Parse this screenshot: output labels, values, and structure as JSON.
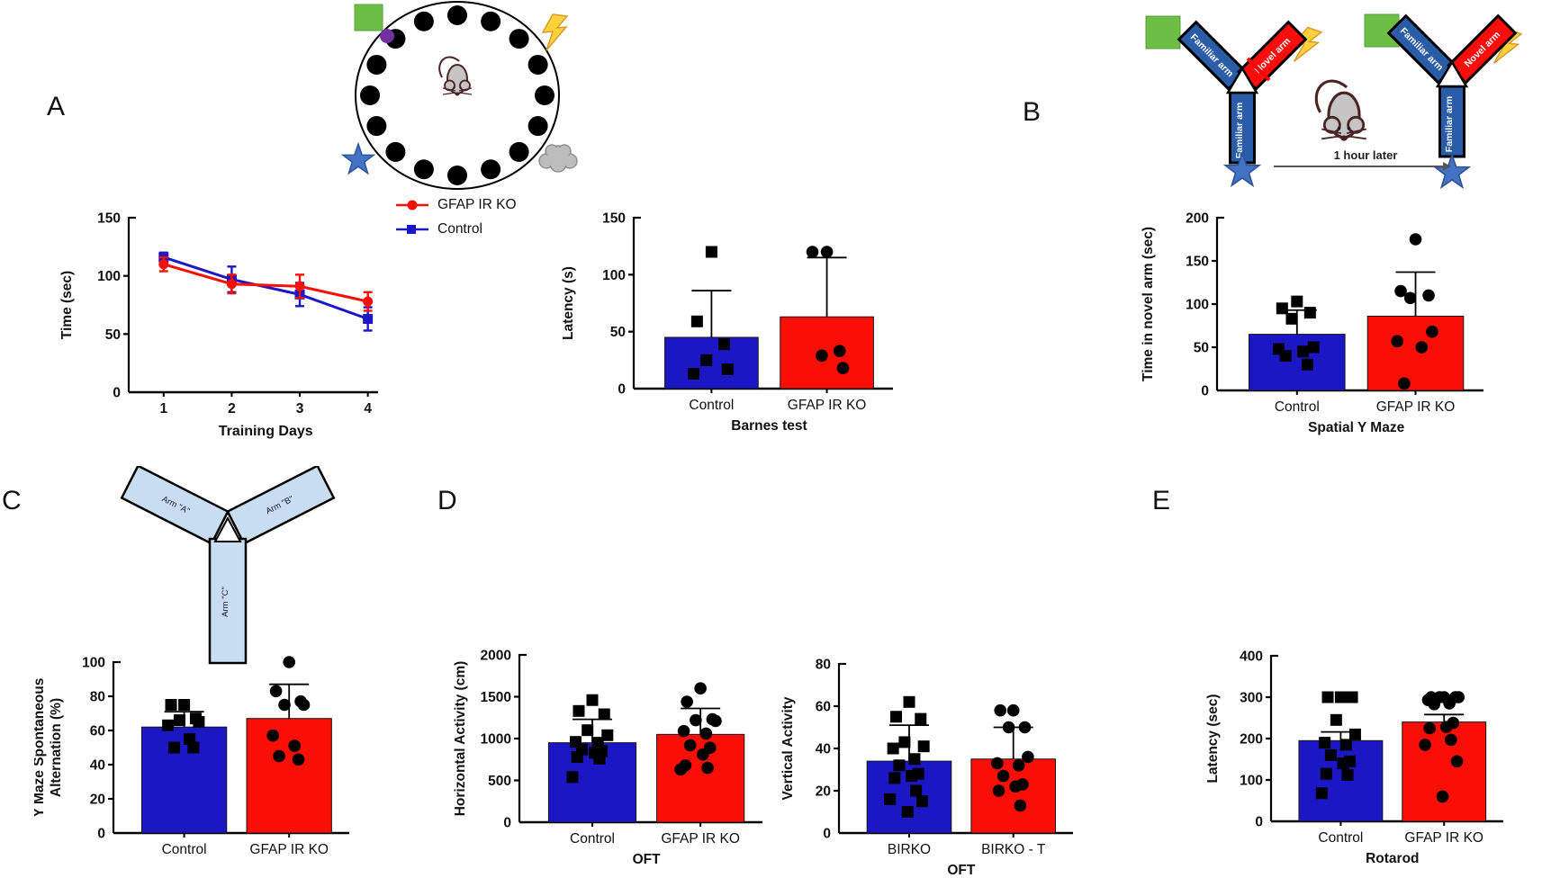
{
  "colors": {
    "control_blue": "#1C17C4",
    "ko_red": "#F90F06",
    "maze_arm_blue": "#2B5CA8",
    "maze_arm_red": "#FF0D0D",
    "maze_light_blue": "#C9DDF1",
    "cue_green": "#6CBE45",
    "cue_purple": "#7030A0",
    "cue_yellow": "#FFD23C",
    "cue_star_blue": "#4472C4",
    "cue_cloud_gray": "#BDBDBD"
  },
  "panels": {
    "a": "A",
    "b": "B",
    "c": "C",
    "d": "D",
    "e": "E"
  },
  "legend": {
    "items": [
      {
        "label": "GFAP IR KO",
        "marker": "circle",
        "color": "#F90F06"
      },
      {
        "label": "Control",
        "marker": "square",
        "color": "#1C17C4"
      }
    ]
  },
  "diagrams": {
    "barnes_maze": {
      "holes": 16,
      "cues": [
        "green-square",
        "purple-circle",
        "lightning-bolt",
        "blue-star",
        "gray-cloud"
      ],
      "center": "mouse"
    },
    "spatial_y_maze": {
      "familiar_arm_label": "Familiar arm",
      "novel_arm_label": "Novel arm",
      "interval_label": "1 hour later"
    },
    "y_maze": {
      "arm_a_label": "Arm \"A\"",
      "arm_b_label": "Arm \"B\"",
      "arm_c_label": "Arm \"C\""
    }
  },
  "chart_data": [
    {
      "id": "training",
      "type": "line",
      "title": "",
      "xlabel": "Training Days",
      "ylabel": "Time (sec)",
      "ylim": [
        0,
        150
      ],
      "yticks": [
        0,
        50,
        100,
        150
      ],
      "x": [
        1,
        2,
        3,
        4
      ],
      "series": [
        {
          "name": "GFAP IR KO",
          "color": "#F90F06",
          "marker": "circle",
          "values": [
            110,
            93,
            91,
            78
          ],
          "errors": [
            6,
            8,
            10,
            8
          ]
        },
        {
          "name": "Control",
          "color": "#1C17C4",
          "marker": "square",
          "values": [
            116,
            97,
            84,
            63
          ],
          "errors": [
            4,
            11,
            10,
            10
          ]
        }
      ]
    },
    {
      "id": "barnes",
      "type": "bar",
      "title": "Barnes test",
      "ylabel": "Latency (s)",
      "ylim": [
        0,
        150
      ],
      "yticks": [
        0,
        50,
        100,
        150
      ],
      "categories": [
        "Control",
        "GFAP IR KO"
      ],
      "bars": [
        {
          "label": "Control",
          "value": 45,
          "error_top": 86,
          "color": "#1C17C4",
          "marker": "square",
          "points": [
            120,
            59,
            39,
            25,
            17,
            13
          ]
        },
        {
          "label": "GFAP IR KO",
          "value": 63,
          "error_top": 115,
          "color": "#F90F06",
          "marker": "circle",
          "points": [
            120,
            120,
            33,
            29,
            18
          ]
        }
      ]
    },
    {
      "id": "spatial",
      "type": "bar",
      "title": "Spatial Y Maze",
      "ylabel": "Time in novel arm (sec)",
      "ylim": [
        0,
        200
      ],
      "yticks": [
        0,
        50,
        100,
        150,
        200
      ],
      "categories": [
        "Control",
        "GFAP IR KO"
      ],
      "bars": [
        {
          "label": "Control",
          "value": 65,
          "error_top": 93,
          "color": "#1C17C4",
          "marker": "square",
          "points": [
            103,
            95,
            90,
            83,
            50,
            48,
            45,
            40,
            30
          ]
        },
        {
          "label": "GFAP IR KO",
          "value": 86,
          "error_top": 137,
          "color": "#F90F06",
          "marker": "circle",
          "points": [
            175,
            115,
            110,
            107,
            68,
            57,
            50,
            8
          ]
        }
      ]
    },
    {
      "id": "alternation",
      "type": "bar",
      "title": "",
      "ylabel": [
        "Y Maze Spontaneous",
        "Alternation (%)"
      ],
      "ylim": [
        0,
        100
      ],
      "yticks": [
        0,
        20,
        40,
        60,
        80,
        100
      ],
      "categories": [
        "Control",
        "GFAP IR KO"
      ],
      "bars": [
        {
          "label": "Control",
          "value": 62,
          "error_top": 71,
          "color": "#1C17C4",
          "marker": "square",
          "points": [
            75,
            75,
            67,
            66,
            65,
            63,
            55,
            50,
            50
          ]
        },
        {
          "label": "GFAP IR KO",
          "value": 67,
          "error_top": 87,
          "color": "#F90F06",
          "marker": "circle",
          "points": [
            100,
            83,
            77,
            75,
            75,
            57,
            51,
            45,
            43
          ]
        }
      ]
    },
    {
      "id": "horizontal",
      "type": "bar",
      "title": "OFT",
      "ylabel": "Horizontal Activity (cm)",
      "ylim": [
        0,
        2000
      ],
      "yticks": [
        0,
        500,
        1000,
        1500,
        2000
      ],
      "categories": [
        "Control",
        "GFAP IR KO"
      ],
      "bars": [
        {
          "label": "Control",
          "value": 950,
          "error_top": 1230,
          "color": "#1C17C4",
          "marker": "square",
          "points": [
            1460,
            1330,
            1290,
            1100,
            1040,
            960,
            950,
            870,
            850,
            830,
            780,
            760,
            540
          ]
        },
        {
          "label": "GFAP IR KO",
          "value": 1050,
          "error_top": 1360,
          "color": "#F90F06",
          "marker": "circle",
          "points": [
            1600,
            1440,
            1230,
            1220,
            1210,
            1090,
            1060,
            920,
            890,
            810,
            680,
            650,
            630
          ]
        }
      ]
    },
    {
      "id": "vertical",
      "type": "bar",
      "title": "OFT",
      "ylabel": "Vertical Activity",
      "ylim": [
        0,
        80
      ],
      "yticks": [
        0,
        20,
        40,
        60,
        80
      ],
      "categories": [
        "BIRKO",
        "BIRKO - T"
      ],
      "bars": [
        {
          "label": "BIRKO",
          "value": 34,
          "error_top": 51,
          "color": "#1C17C4",
          "marker": "square",
          "points": [
            62,
            55,
            54,
            43,
            41,
            40,
            35,
            32,
            28,
            27,
            26,
            20,
            16,
            15,
            10
          ]
        },
        {
          "label": "BIRKO - T",
          "value": 35,
          "error_top": 50,
          "color": "#F90F06",
          "marker": "circle",
          "points": [
            58,
            58,
            50,
            50,
            36,
            33,
            32,
            27,
            23,
            22,
            20,
            13
          ]
        }
      ]
    },
    {
      "id": "rotarod",
      "type": "bar",
      "title": "Rotarod",
      "ylabel": "Latency (sec)",
      "ylim": [
        0,
        400
      ],
      "yticks": [
        0,
        100,
        200,
        300,
        400
      ],
      "categories": [
        "Control",
        "GFAP IR KO"
      ],
      "bars": [
        {
          "label": "Control",
          "value": 195,
          "error_top": 216,
          "color": "#1C17C4",
          "marker": "square",
          "points": [
            300,
            300,
            300,
            245,
            210,
            190,
            185,
            160,
            145,
            140,
            115,
            112,
            68
          ]
        },
        {
          "label": "GFAP IR KO",
          "value": 240,
          "error_top": 258,
          "color": "#F90F06",
          "marker": "circle",
          "points": [
            300,
            300,
            300,
            300,
            300,
            293,
            285,
            283,
            238,
            228,
            225,
            197,
            185,
            145,
            60
          ]
        }
      ]
    }
  ]
}
